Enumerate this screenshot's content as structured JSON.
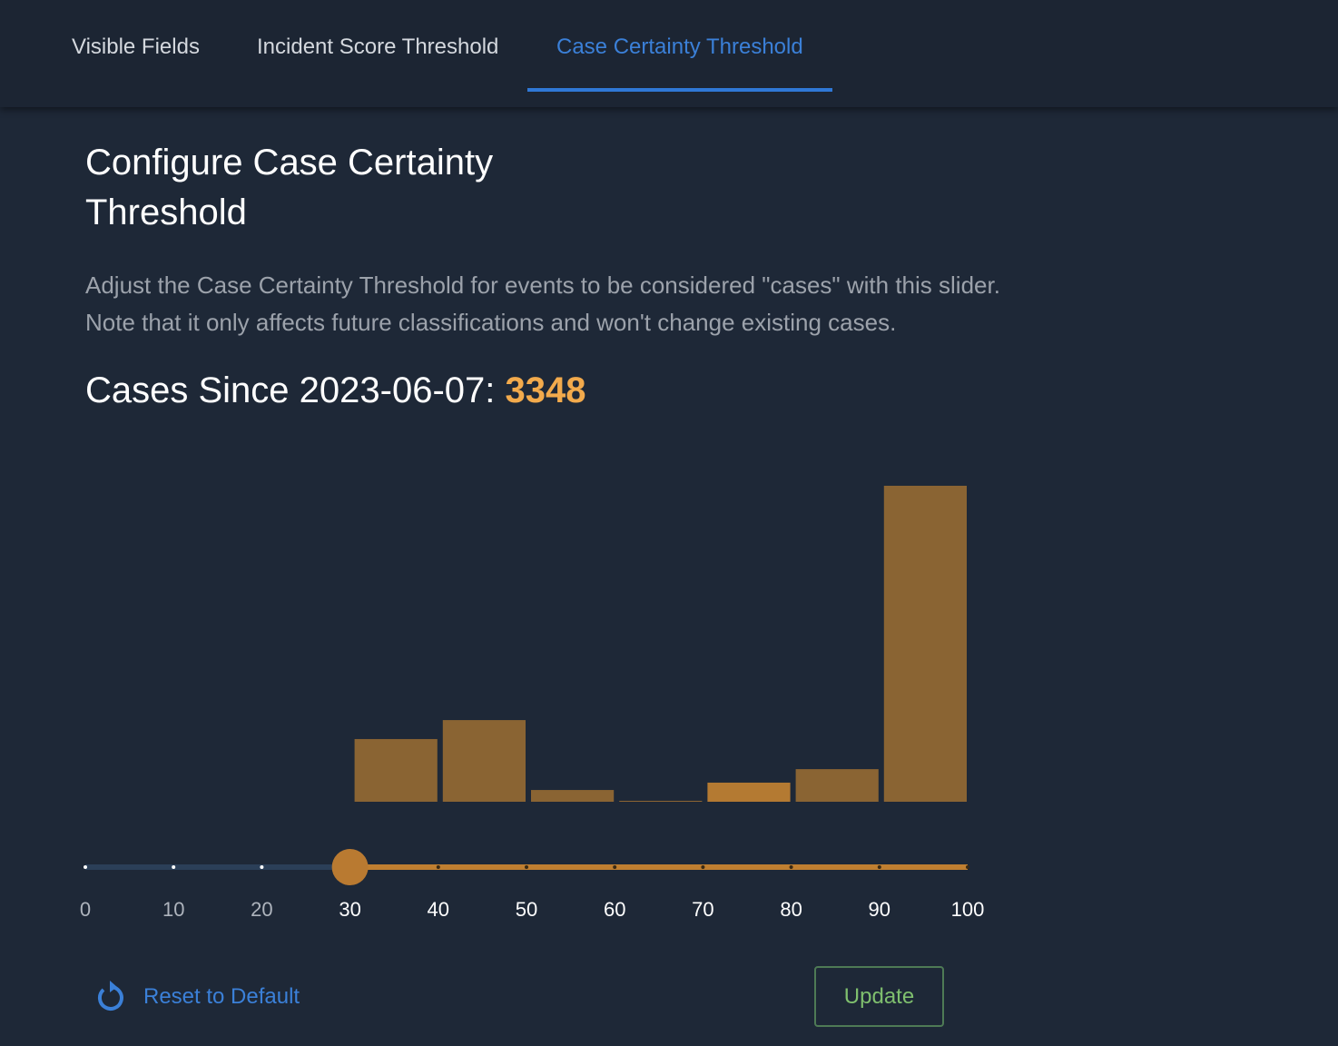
{
  "tabs": [
    "Visible Fields",
    "Incident Score Threshold",
    "Case Certainty Threshold"
  ],
  "active_tab": 2,
  "title": "Configure Case Certainty Threshold",
  "description": [
    "Adjust the Case Certainty Threshold for events to be considered \"cases\" with this slider.",
    "Note that it only affects future classifications and won't change existing cases."
  ],
  "cases_label": "Cases Since 2023-06-07:",
  "cases_count": 3348,
  "histogram": {
    "bins": [
      30,
      40,
      50,
      60,
      70,
      80,
      90,
      100
    ],
    "counts": [
      400,
      521,
      75,
      6,
      122,
      208,
      2016
    ],
    "colors": [
      "#8a6433",
      "#8a6433",
      "#8a6433",
      "#8a6433",
      "#b47a32",
      "#8a6433",
      "#8a6433"
    ]
  },
  "slider": {
    "lim": [
      0,
      100
    ],
    "ticks": [
      0,
      10,
      20,
      30,
      40,
      50,
      60,
      70,
      80,
      90,
      100
    ],
    "value": 30
  },
  "reset_label": "Reset to Default",
  "update_label": "Update"
}
